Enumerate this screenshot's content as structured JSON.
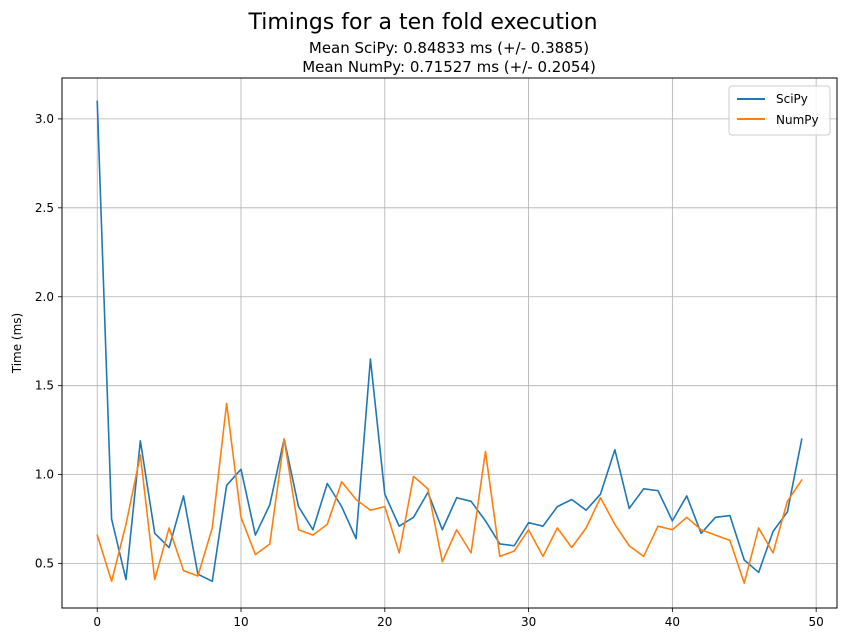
{
  "chart_data": {
    "type": "line",
    "title": "Timings for a ten fold execution",
    "subtitle_lines": [
      "Mean SciPy: 0.84833 ms (+/- 0.3885)",
      "Mean NumPy: 0.71527 ms (+/- 0.2054)"
    ],
    "xlabel": "",
    "ylabel": "Time (ms)",
    "xlim": [
      -2.45,
      51.45
    ],
    "ylim": [
      0.25,
      3.23
    ],
    "xticks": [
      0,
      10,
      20,
      30,
      40,
      50
    ],
    "yticks": [
      0.5,
      1.0,
      1.5,
      2.0,
      2.5,
      3.0
    ],
    "xtick_labels": [
      "0",
      "10",
      "20",
      "30",
      "40",
      "50"
    ],
    "ytick_labels": [
      "0.5",
      "1.0",
      "1.5",
      "2.0",
      "2.5",
      "3.0"
    ],
    "grid": true,
    "legend_position": "top-right",
    "x": [
      0,
      1,
      2,
      3,
      4,
      5,
      6,
      7,
      8,
      9,
      10,
      11,
      12,
      13,
      14,
      15,
      16,
      17,
      18,
      19,
      20,
      21,
      22,
      23,
      24,
      25,
      26,
      27,
      28,
      29,
      30,
      31,
      32,
      33,
      34,
      35,
      36,
      37,
      38,
      39,
      40,
      41,
      42,
      43,
      44,
      45,
      46,
      47,
      48,
      49
    ],
    "series": [
      {
        "name": "SciPy",
        "color": "#1f77b4",
        "values": [
          3.1,
          0.75,
          0.41,
          1.19,
          0.67,
          0.59,
          0.88,
          0.44,
          0.4,
          0.94,
          1.03,
          0.66,
          0.83,
          1.2,
          0.82,
          0.69,
          0.95,
          0.82,
          0.64,
          1.65,
          0.89,
          0.71,
          0.76,
          0.9,
          0.69,
          0.87,
          0.85,
          0.74,
          0.61,
          0.6,
          0.73,
          0.71,
          0.82,
          0.86,
          0.8,
          0.89,
          1.14,
          0.81,
          0.92,
          0.91,
          0.74,
          0.88,
          0.67,
          0.76,
          0.77,
          0.52,
          0.45,
          0.68,
          0.79,
          1.2
        ]
      },
      {
        "name": "NumPy",
        "color": "#ff7f0e",
        "values": [
          0.66,
          0.4,
          0.72,
          1.11,
          0.41,
          0.7,
          0.46,
          0.43,
          0.7,
          1.4,
          0.76,
          0.55,
          0.61,
          1.2,
          0.69,
          0.66,
          0.72,
          0.96,
          0.86,
          0.8,
          0.82,
          0.56,
          0.99,
          0.92,
          0.51,
          0.69,
          0.56,
          1.13,
          0.54,
          0.57,
          0.69,
          0.54,
          0.7,
          0.59,
          0.7,
          0.87,
          0.72,
          0.6,
          0.54,
          0.71,
          0.69,
          0.76,
          0.69,
          0.66,
          0.63,
          0.39,
          0.7,
          0.56,
          0.85,
          0.97
        ]
      }
    ]
  }
}
